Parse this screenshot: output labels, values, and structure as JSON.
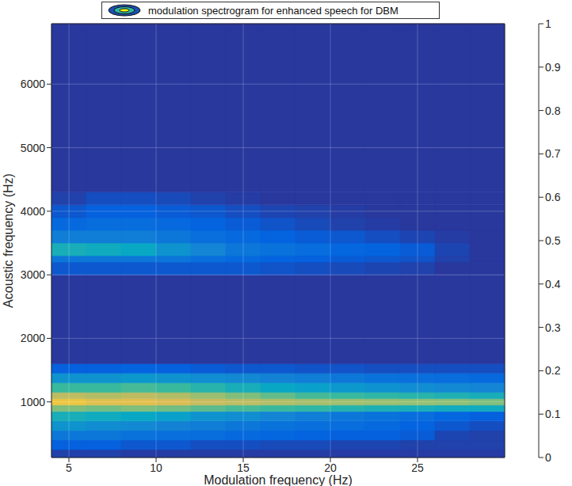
{
  "chart_data": {
    "type": "heatmap",
    "title": "modulation spectrogram for enhanced speech for DBM",
    "x_label": "Modulation frequency (Hz)",
    "y_label": "Acoustic frequency (Hz)",
    "xlim": [
      4,
      30
    ],
    "xticks": [
      5,
      10,
      15,
      20,
      25
    ],
    "ylim": [
      125,
      6950
    ],
    "yticks": [
      1000,
      2000,
      3000,
      4000,
      5000,
      6000
    ],
    "grid": true,
    "x_edges": [
      4,
      6,
      8,
      10,
      12,
      14,
      16,
      18,
      20,
      22,
      24,
      26,
      28,
      30
    ],
    "y_edges": [
      125,
      250,
      400,
      550,
      700,
      850,
      950,
      1050,
      1150,
      1300,
      1450,
      1600,
      3000,
      3200,
      3300,
      3500,
      3700,
      3900,
      4100,
      4300,
      6950
    ],
    "cells": [
      [
        0.05,
        0.05,
        0.04,
        0.04,
        0.04,
        0.04,
        0.04,
        0.04,
        0.04,
        0.04,
        0.04,
        0.04,
        0.04
      ],
      [
        0.12,
        0.12,
        0.1,
        0.1,
        0.08,
        0.08,
        0.07,
        0.07,
        0.06,
        0.06,
        0.05,
        0.05,
        0.05
      ],
      [
        0.2,
        0.2,
        0.18,
        0.17,
        0.16,
        0.15,
        0.14,
        0.13,
        0.12,
        0.12,
        0.11,
        0.06,
        0.05
      ],
      [
        0.3,
        0.28,
        0.26,
        0.24,
        0.22,
        0.2,
        0.18,
        0.17,
        0.16,
        0.15,
        0.13,
        0.1,
        0.08
      ],
      [
        0.42,
        0.4,
        0.38,
        0.35,
        0.3,
        0.28,
        0.25,
        0.22,
        0.2,
        0.18,
        0.16,
        0.14,
        0.12
      ],
      [
        0.6,
        0.58,
        0.6,
        0.58,
        0.55,
        0.52,
        0.5,
        0.48,
        0.45,
        0.43,
        0.42,
        0.4,
        0.4
      ],
      [
        0.82,
        0.78,
        0.78,
        0.76,
        0.72,
        0.7,
        0.68,
        0.66,
        0.65,
        0.64,
        0.63,
        0.62,
        0.6
      ],
      [
        0.7,
        0.68,
        0.7,
        0.68,
        0.64,
        0.6,
        0.56,
        0.52,
        0.5,
        0.48,
        0.46,
        0.44,
        0.42
      ],
      [
        0.5,
        0.5,
        0.52,
        0.5,
        0.46,
        0.42,
        0.38,
        0.35,
        0.32,
        0.3,
        0.28,
        0.26,
        0.25
      ],
      [
        0.3,
        0.3,
        0.32,
        0.3,
        0.28,
        0.26,
        0.24,
        0.22,
        0.2,
        0.18,
        0.17,
        0.16,
        0.15
      ],
      [
        0.12,
        0.12,
        0.13,
        0.12,
        0.11,
        0.1,
        0.1,
        0.09,
        0.09,
        0.08,
        0.08,
        0.08,
        0.08
      ],
      [
        0.03,
        0.03,
        0.03,
        0.03,
        0.03,
        0.03,
        0.03,
        0.03,
        0.03,
        0.03,
        0.03,
        0.03,
        0.03
      ],
      [
        0.1,
        0.1,
        0.1,
        0.1,
        0.1,
        0.1,
        0.09,
        0.08,
        0.07,
        0.06,
        0.05,
        0.03,
        0.03
      ],
      [
        0.2,
        0.2,
        0.2,
        0.19,
        0.17,
        0.15,
        0.13,
        0.12,
        0.11,
        0.1,
        0.09,
        0.05,
        0.03
      ],
      [
        0.42,
        0.4,
        0.38,
        0.3,
        0.25,
        0.2,
        0.18,
        0.16,
        0.14,
        0.13,
        0.11,
        0.06,
        0.03
      ],
      [
        0.22,
        0.22,
        0.22,
        0.2,
        0.17,
        0.15,
        0.13,
        0.11,
        0.1,
        0.08,
        0.06,
        0.04,
        0.03
      ],
      [
        0.15,
        0.16,
        0.16,
        0.15,
        0.13,
        0.11,
        0.09,
        0.07,
        0.05,
        0.04,
        0.03,
        0.03,
        0.03
      ],
      [
        0.1,
        0.12,
        0.12,
        0.11,
        0.1,
        0.08,
        0.06,
        0.05,
        0.04,
        0.03,
        0.03,
        0.03,
        0.03
      ],
      [
        0.05,
        0.08,
        0.08,
        0.07,
        0.05,
        0.04,
        0.03,
        0.03,
        0.03,
        0.03,
        0.03,
        0.03,
        0.03
      ],
      [
        0.03,
        0.03,
        0.03,
        0.03,
        0.03,
        0.03,
        0.03,
        0.03,
        0.03,
        0.03,
        0.03,
        0.03,
        0.03
      ]
    ],
    "colorbar": {
      "range": [
        0,
        1
      ],
      "ticks": [
        0,
        0.1,
        0.2,
        0.3,
        0.4,
        0.5,
        0.6,
        0.7,
        0.8,
        0.9,
        1
      ]
    }
  }
}
